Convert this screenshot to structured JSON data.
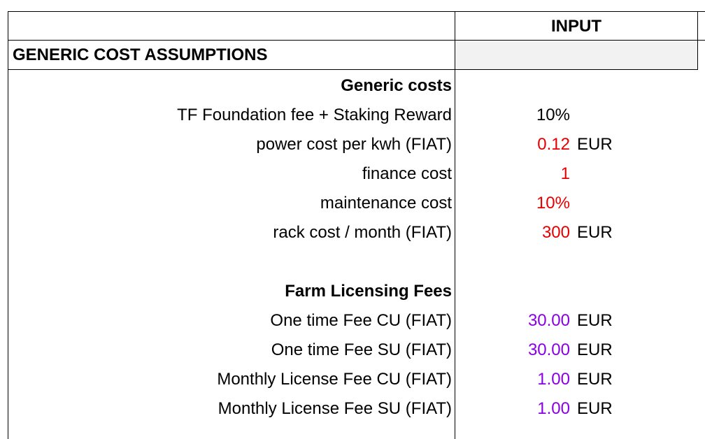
{
  "header": {
    "input_label": "INPUT"
  },
  "section": {
    "title": "GENERIC COST ASSUMPTIONS"
  },
  "generic_costs": {
    "heading": "Generic costs",
    "rows": [
      {
        "label": "TF Foundation fee + Staking Reward",
        "value": "10%",
        "unit": "",
        "color": "#000000"
      },
      {
        "label": "power cost per kwh (FIAT)",
        "value": "0.12",
        "unit": "EUR",
        "color": "#e60000"
      },
      {
        "label": "finance cost",
        "value": "1",
        "unit": "",
        "color": "#e60000"
      },
      {
        "label": "maintenance cost",
        "value": "10%",
        "unit": "",
        "color": "#e60000"
      },
      {
        "label": "rack cost / month (FIAT)",
        "value": "300",
        "unit": "EUR",
        "color": "#e60000"
      }
    ]
  },
  "farm_licensing": {
    "heading": "Farm Licensing Fees",
    "rows": [
      {
        "label": "One time Fee CU (FIAT)",
        "value": "30.00",
        "unit": "EUR",
        "color": "#8a00e6"
      },
      {
        "label": "One time Fee SU (FIAT)",
        "value": "30.00",
        "unit": "EUR",
        "color": "#8a00e6"
      },
      {
        "label": "Monthly License Fee CU (FIAT)",
        "value": "1.00",
        "unit": "EUR",
        "color": "#8a00e6"
      },
      {
        "label": "Monthly License Fee SU (FIAT)",
        "value": "1.00",
        "unit": "EUR",
        "color": "#8a00e6"
      }
    ]
  }
}
